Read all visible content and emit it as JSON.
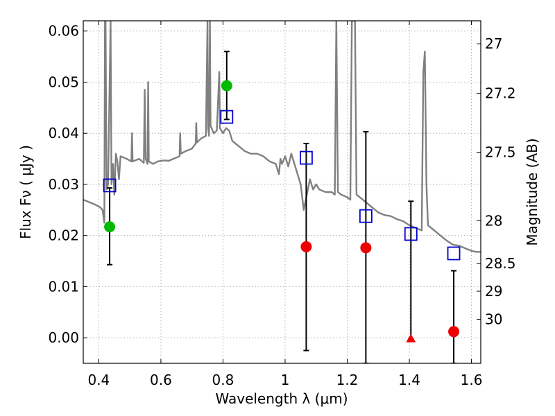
{
  "chart_data": {
    "type": "scatter",
    "xlabel": "Wavelength  λ (μm)",
    "ylabel": "Flux  Fν  ( μJy )",
    "ylabel2": "Magnitude (AB)",
    "xlim": [
      0.35,
      1.63
    ],
    "ylim": [
      -0.005,
      0.062
    ],
    "grid": true,
    "x_ticks": [
      0.4,
      0.6,
      0.8,
      1.0,
      1.2,
      1.4,
      1.6
    ],
    "x_tick_labels": [
      "0.4",
      "0.6",
      "0.8",
      "1",
      "1.2",
      "1.4",
      "1.6"
    ],
    "y_ticks": [
      0.0,
      0.01,
      0.02,
      0.03,
      0.04,
      0.05,
      0.06
    ],
    "y_tick_labels": [
      "0.00",
      "0.01",
      "0.02",
      "0.03",
      "0.04",
      "0.05",
      "0.06"
    ],
    "mag_ticks": [
      {
        "label": "27",
        "flux": 0.0575
      },
      {
        "label": "27.2",
        "flux": 0.0478
      },
      {
        "label": "27.5",
        "flux": 0.0363
      },
      {
        "label": "28",
        "flux": 0.0229
      },
      {
        "label": "28.5",
        "flux": 0.0145
      },
      {
        "label": "29",
        "flux": 0.0091
      },
      {
        "label": "30",
        "flux": 0.0036
      }
    ],
    "series": [
      {
        "name": "model-spectrum",
        "kind": "line",
        "color": "#808080",
        "points": [
          [
            0.35,
            0.027
          ],
          [
            0.37,
            0.0265
          ],
          [
            0.39,
            0.026
          ],
          [
            0.405,
            0.0255
          ],
          [
            0.412,
            0.025
          ],
          [
            0.418,
            0.0225
          ],
          [
            0.42,
            0.062
          ],
          [
            0.422,
            0.062
          ],
          [
            0.425,
            0.029
          ],
          [
            0.43,
            0.03
          ],
          [
            0.438,
            0.062
          ],
          [
            0.441,
            0.03
          ],
          [
            0.446,
            0.034
          ],
          [
            0.45,
            0.028
          ],
          [
            0.455,
            0.036
          ],
          [
            0.46,
            0.0345
          ],
          [
            0.465,
            0.031
          ],
          [
            0.47,
            0.0355
          ],
          [
            0.49,
            0.035
          ],
          [
            0.505,
            0.0345
          ],
          [
            0.507,
            0.04
          ],
          [
            0.509,
            0.0345
          ],
          [
            0.53,
            0.035
          ],
          [
            0.545,
            0.0342
          ],
          [
            0.548,
            0.0485
          ],
          [
            0.551,
            0.035
          ],
          [
            0.557,
            0.034
          ],
          [
            0.559,
            0.05
          ],
          [
            0.561,
            0.0345
          ],
          [
            0.575,
            0.034
          ],
          [
            0.59,
            0.0345
          ],
          [
            0.61,
            0.0347
          ],
          [
            0.625,
            0.0346
          ],
          [
            0.64,
            0.035
          ],
          [
            0.66,
            0.0355
          ],
          [
            0.662,
            0.04
          ],
          [
            0.664,
            0.036
          ],
          [
            0.68,
            0.0365
          ],
          [
            0.7,
            0.037
          ],
          [
            0.712,
            0.038
          ],
          [
            0.714,
            0.042
          ],
          [
            0.716,
            0.0382
          ],
          [
            0.73,
            0.039
          ],
          [
            0.745,
            0.0395
          ],
          [
            0.75,
            0.062
          ],
          [
            0.752,
            0.041
          ],
          [
            0.755,
            0.0395
          ],
          [
            0.758,
            0.062
          ],
          [
            0.76,
            0.0415
          ],
          [
            0.77,
            0.04
          ],
          [
            0.78,
            0.0405
          ],
          [
            0.788,
            0.052
          ],
          [
            0.79,
            0.041
          ],
          [
            0.8,
            0.04
          ],
          [
            0.81,
            0.041
          ],
          [
            0.82,
            0.0405
          ],
          [
            0.83,
            0.0385
          ],
          [
            0.85,
            0.0375
          ],
          [
            0.87,
            0.0365
          ],
          [
            0.89,
            0.036
          ],
          [
            0.91,
            0.036
          ],
          [
            0.93,
            0.0355
          ],
          [
            0.95,
            0.0345
          ],
          [
            0.97,
            0.034
          ],
          [
            0.98,
            0.032
          ],
          [
            0.985,
            0.035
          ],
          [
            0.99,
            0.034
          ],
          [
            1.0,
            0.0355
          ],
          [
            1.01,
            0.0335
          ],
          [
            1.02,
            0.036
          ],
          [
            1.03,
            0.034
          ],
          [
            1.04,
            0.032
          ],
          [
            1.05,
            0.03
          ],
          [
            1.06,
            0.025
          ],
          [
            1.08,
            0.031
          ],
          [
            1.09,
            0.029
          ],
          [
            1.1,
            0.03
          ],
          [
            1.11,
            0.029
          ],
          [
            1.13,
            0.0285
          ],
          [
            1.15,
            0.0285
          ],
          [
            1.16,
            0.028
          ],
          [
            1.165,
            0.062
          ],
          [
            1.17,
            0.0285
          ],
          [
            1.18,
            0.028
          ],
          [
            1.2,
            0.0275
          ],
          [
            1.21,
            0.027
          ],
          [
            1.215,
            0.062
          ],
          [
            1.225,
            0.062
          ],
          [
            1.23,
            0.028
          ],
          [
            1.26,
            0.0265
          ],
          [
            1.28,
            0.0255
          ],
          [
            1.3,
            0.0245
          ],
          [
            1.32,
            0.024
          ],
          [
            1.34,
            0.0238
          ],
          [
            1.36,
            0.0232
          ],
          [
            1.38,
            0.0228
          ],
          [
            1.4,
            0.022
          ],
          [
            1.42,
            0.0215
          ],
          [
            1.44,
            0.021
          ],
          [
            1.445,
            0.052
          ],
          [
            1.45,
            0.056
          ],
          [
            1.455,
            0.03
          ],
          [
            1.46,
            0.022
          ],
          [
            1.48,
            0.021
          ],
          [
            1.5,
            0.02
          ],
          [
            1.52,
            0.019
          ],
          [
            1.54,
            0.0182
          ],
          [
            1.56,
            0.018
          ],
          [
            1.58,
            0.0175
          ],
          [
            1.6,
            0.017
          ],
          [
            1.615,
            0.0168
          ],
          [
            1.63,
            0.0168
          ]
        ]
      },
      {
        "name": "model-photometry",
        "kind": "open-square",
        "color": "#0000cc",
        "points": [
          [
            0.435,
            0.0298
          ],
          [
            0.812,
            0.0432
          ],
          [
            1.068,
            0.0352
          ],
          [
            1.26,
            0.0238
          ],
          [
            1.405,
            0.0203
          ],
          [
            1.543,
            0.0165
          ]
        ]
      },
      {
        "name": "detections",
        "kind": "filled-circle",
        "color": "#00bb00",
        "points": [
          [
            0.435,
            0.0217
          ],
          [
            0.812,
            0.0493
          ]
        ]
      },
      {
        "name": "low-significance",
        "kind": "filled-circle",
        "color": "#ee0000",
        "points": [
          [
            1.068,
            0.0178
          ],
          [
            1.26,
            0.0176
          ],
          [
            1.543,
            0.0012
          ]
        ]
      },
      {
        "name": "upper-limit",
        "kind": "filled-triangle",
        "color": "#ee0000",
        "points": [
          [
            1.405,
            -0.0002
          ]
        ]
      }
    ],
    "error_bars": [
      {
        "x": 0.435,
        "low": 0.0143,
        "high": 0.0293
      },
      {
        "x": 0.812,
        "low": 0.0427,
        "high": 0.056
      },
      {
        "x": 1.068,
        "low": -0.0025,
        "high": 0.038
      },
      {
        "x": 1.26,
        "low": -0.005,
        "high": 0.0403
      },
      {
        "x": 1.405,
        "low": -0.0002,
        "high": 0.0267
      },
      {
        "x": 1.543,
        "low": -0.005,
        "high": 0.0131
      }
    ]
  }
}
